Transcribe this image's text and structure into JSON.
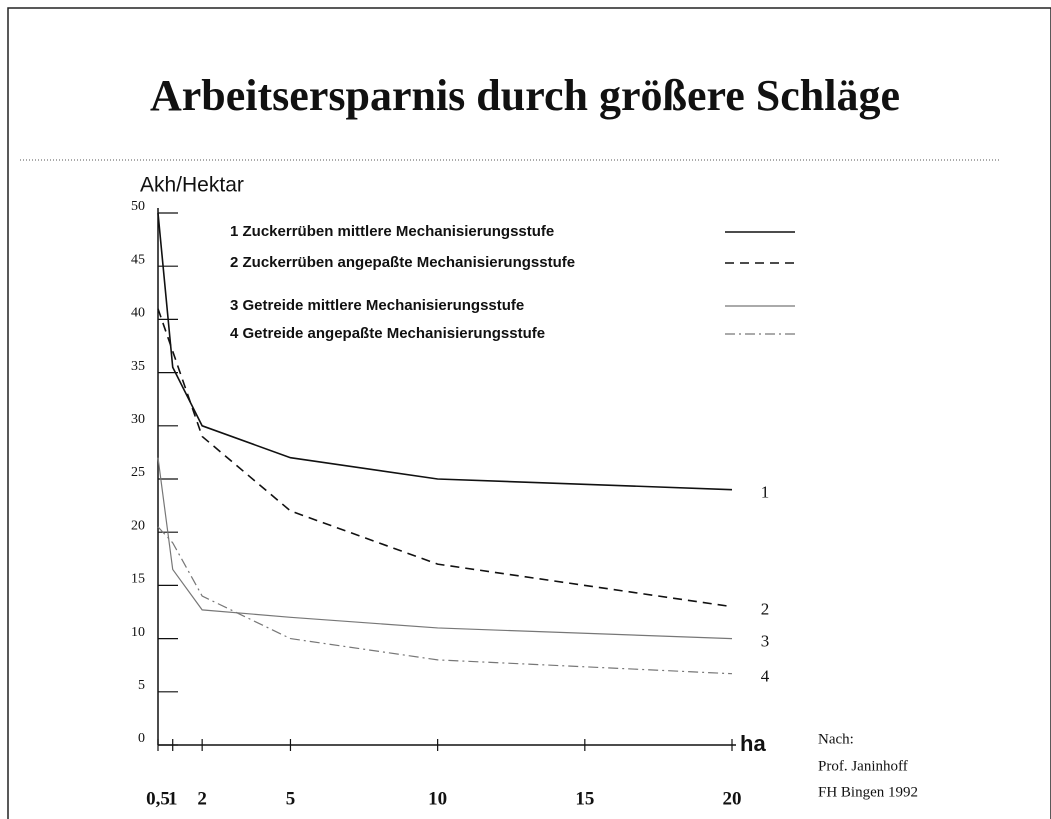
{
  "chart_data": {
    "type": "line",
    "title": "Arbeitsersparnis durch größere Schläge",
    "y_label": "Akh/Hektar",
    "x_label": "ha",
    "source": [
      "Nach:",
      "Prof. Janinhoff",
      "FH Bingen 1992"
    ],
    "x": [
      0.5,
      1,
      2,
      5,
      10,
      20
    ],
    "series": [
      {
        "name": "1 Zuckerrüben mittlere Mechanisierungsstufe",
        "end_label": "1",
        "color": "#111111",
        "dash": "solid",
        "values": [
          50,
          35.5,
          30,
          27,
          25,
          24
        ]
      },
      {
        "name": "2 Zuckerrüben angepaßte Mechanisierungsstufe",
        "end_label": "2",
        "color": "#111111",
        "dash": "dashed",
        "values": [
          41,
          37,
          29,
          22,
          17,
          13
        ]
      },
      {
        "name": "3 Getreide mittlere Mechanisierungsstufe",
        "end_label": "3",
        "color": "#777777",
        "dash": "solid",
        "values": [
          27,
          16.5,
          12.7,
          12,
          11,
          10
        ]
      },
      {
        "name": "4 Getreide angepaßte Mechanisierungsstufe",
        "end_label": "4",
        "color": "#777777",
        "dash": "dashdot",
        "values": [
          20.5,
          19,
          14,
          10,
          8,
          6.7
        ]
      }
    ],
    "xlim": [
      0.5,
      20
    ],
    "xticks": [
      {
        "value": 0.5,
        "label": "0,5"
      },
      1,
      2,
      5,
      10,
      15,
      20
    ],
    "ylim": [
      0,
      50
    ],
    "yticks": [
      0,
      5,
      10,
      15,
      20,
      25,
      30,
      35,
      40,
      45,
      50
    ],
    "grid": false
  }
}
